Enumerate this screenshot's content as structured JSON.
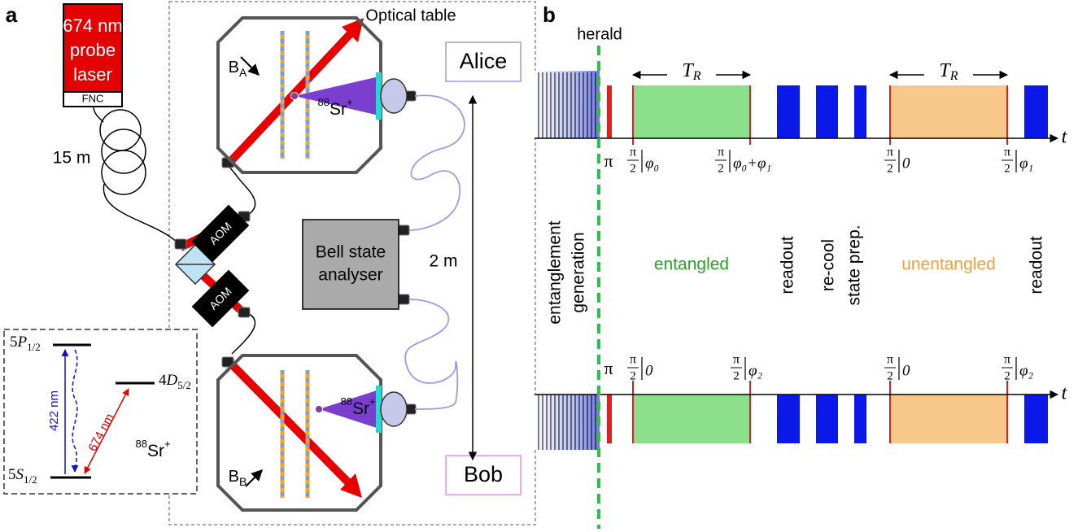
{
  "panel_a": {
    "label": "a",
    "laser": {
      "lines": [
        "674 nm",
        "probe",
        "laser"
      ],
      "controller": "FNC"
    },
    "fiber_length": "15 m",
    "table_label": "Optical table",
    "aoms": [
      "AOM",
      "AOM"
    ],
    "analyser": [
      "Bell state",
      "analyser"
    ],
    "distance": "2 m",
    "nodes": [
      "Alice",
      "Bob"
    ],
    "fields": [
      {
        "symbol": "B",
        "sub": "A"
      },
      {
        "symbol": "B",
        "sub": "B"
      }
    ],
    "ions": [
      {
        "mass": "88",
        "element": "Sr",
        "charge": "+"
      },
      {
        "mass": "88",
        "element": "Sr",
        "charge": "+"
      }
    ],
    "level_scheme": {
      "levels": [
        {
          "n": "5",
          "orbital": "P",
          "j": "1/2"
        },
        {
          "n": "4",
          "orbital": "D",
          "j": "5/2"
        },
        {
          "n": "5",
          "orbital": "S",
          "j": "1/2"
        }
      ],
      "transitions": [
        "422 nm",
        "674 nm"
      ],
      "ion": {
        "mass": "88",
        "element": "Sr",
        "charge": "+"
      }
    }
  },
  "panel_b": {
    "label": "b",
    "herald": "herald",
    "periods": [
      {
        "symbol": "T",
        "sub": "R"
      },
      {
        "symbol": "T",
        "sub": "R"
      }
    ],
    "time_axes": [
      "t",
      "t"
    ],
    "alice_pulses": [
      {
        "angle": "π"
      },
      {
        "num": "π",
        "den": "2",
        "phase": "φ₀"
      },
      {
        "num": "π",
        "den": "2",
        "phase": "φ₀+φ₁"
      },
      {
        "num": "π",
        "den": "2",
        "phase": "0"
      },
      {
        "num": "π",
        "den": "2",
        "phase": "φ₁"
      }
    ],
    "bob_pulses": [
      {
        "angle": "π"
      },
      {
        "num": "π",
        "den": "2",
        "phase": "0"
      },
      {
        "num": "π",
        "den": "2",
        "phase": "φ₂"
      },
      {
        "num": "π",
        "den": "2",
        "phase": "0"
      },
      {
        "num": "π",
        "den": "2",
        "phase": "φ₂"
      }
    ],
    "stages": {
      "generation": [
        "entanglement",
        "generation"
      ],
      "entangled": "entangled",
      "readout": [
        "readout",
        "readout"
      ],
      "recool": "re-cool",
      "prep": "state prep.",
      "unentangled": "unentangled"
    }
  }
}
